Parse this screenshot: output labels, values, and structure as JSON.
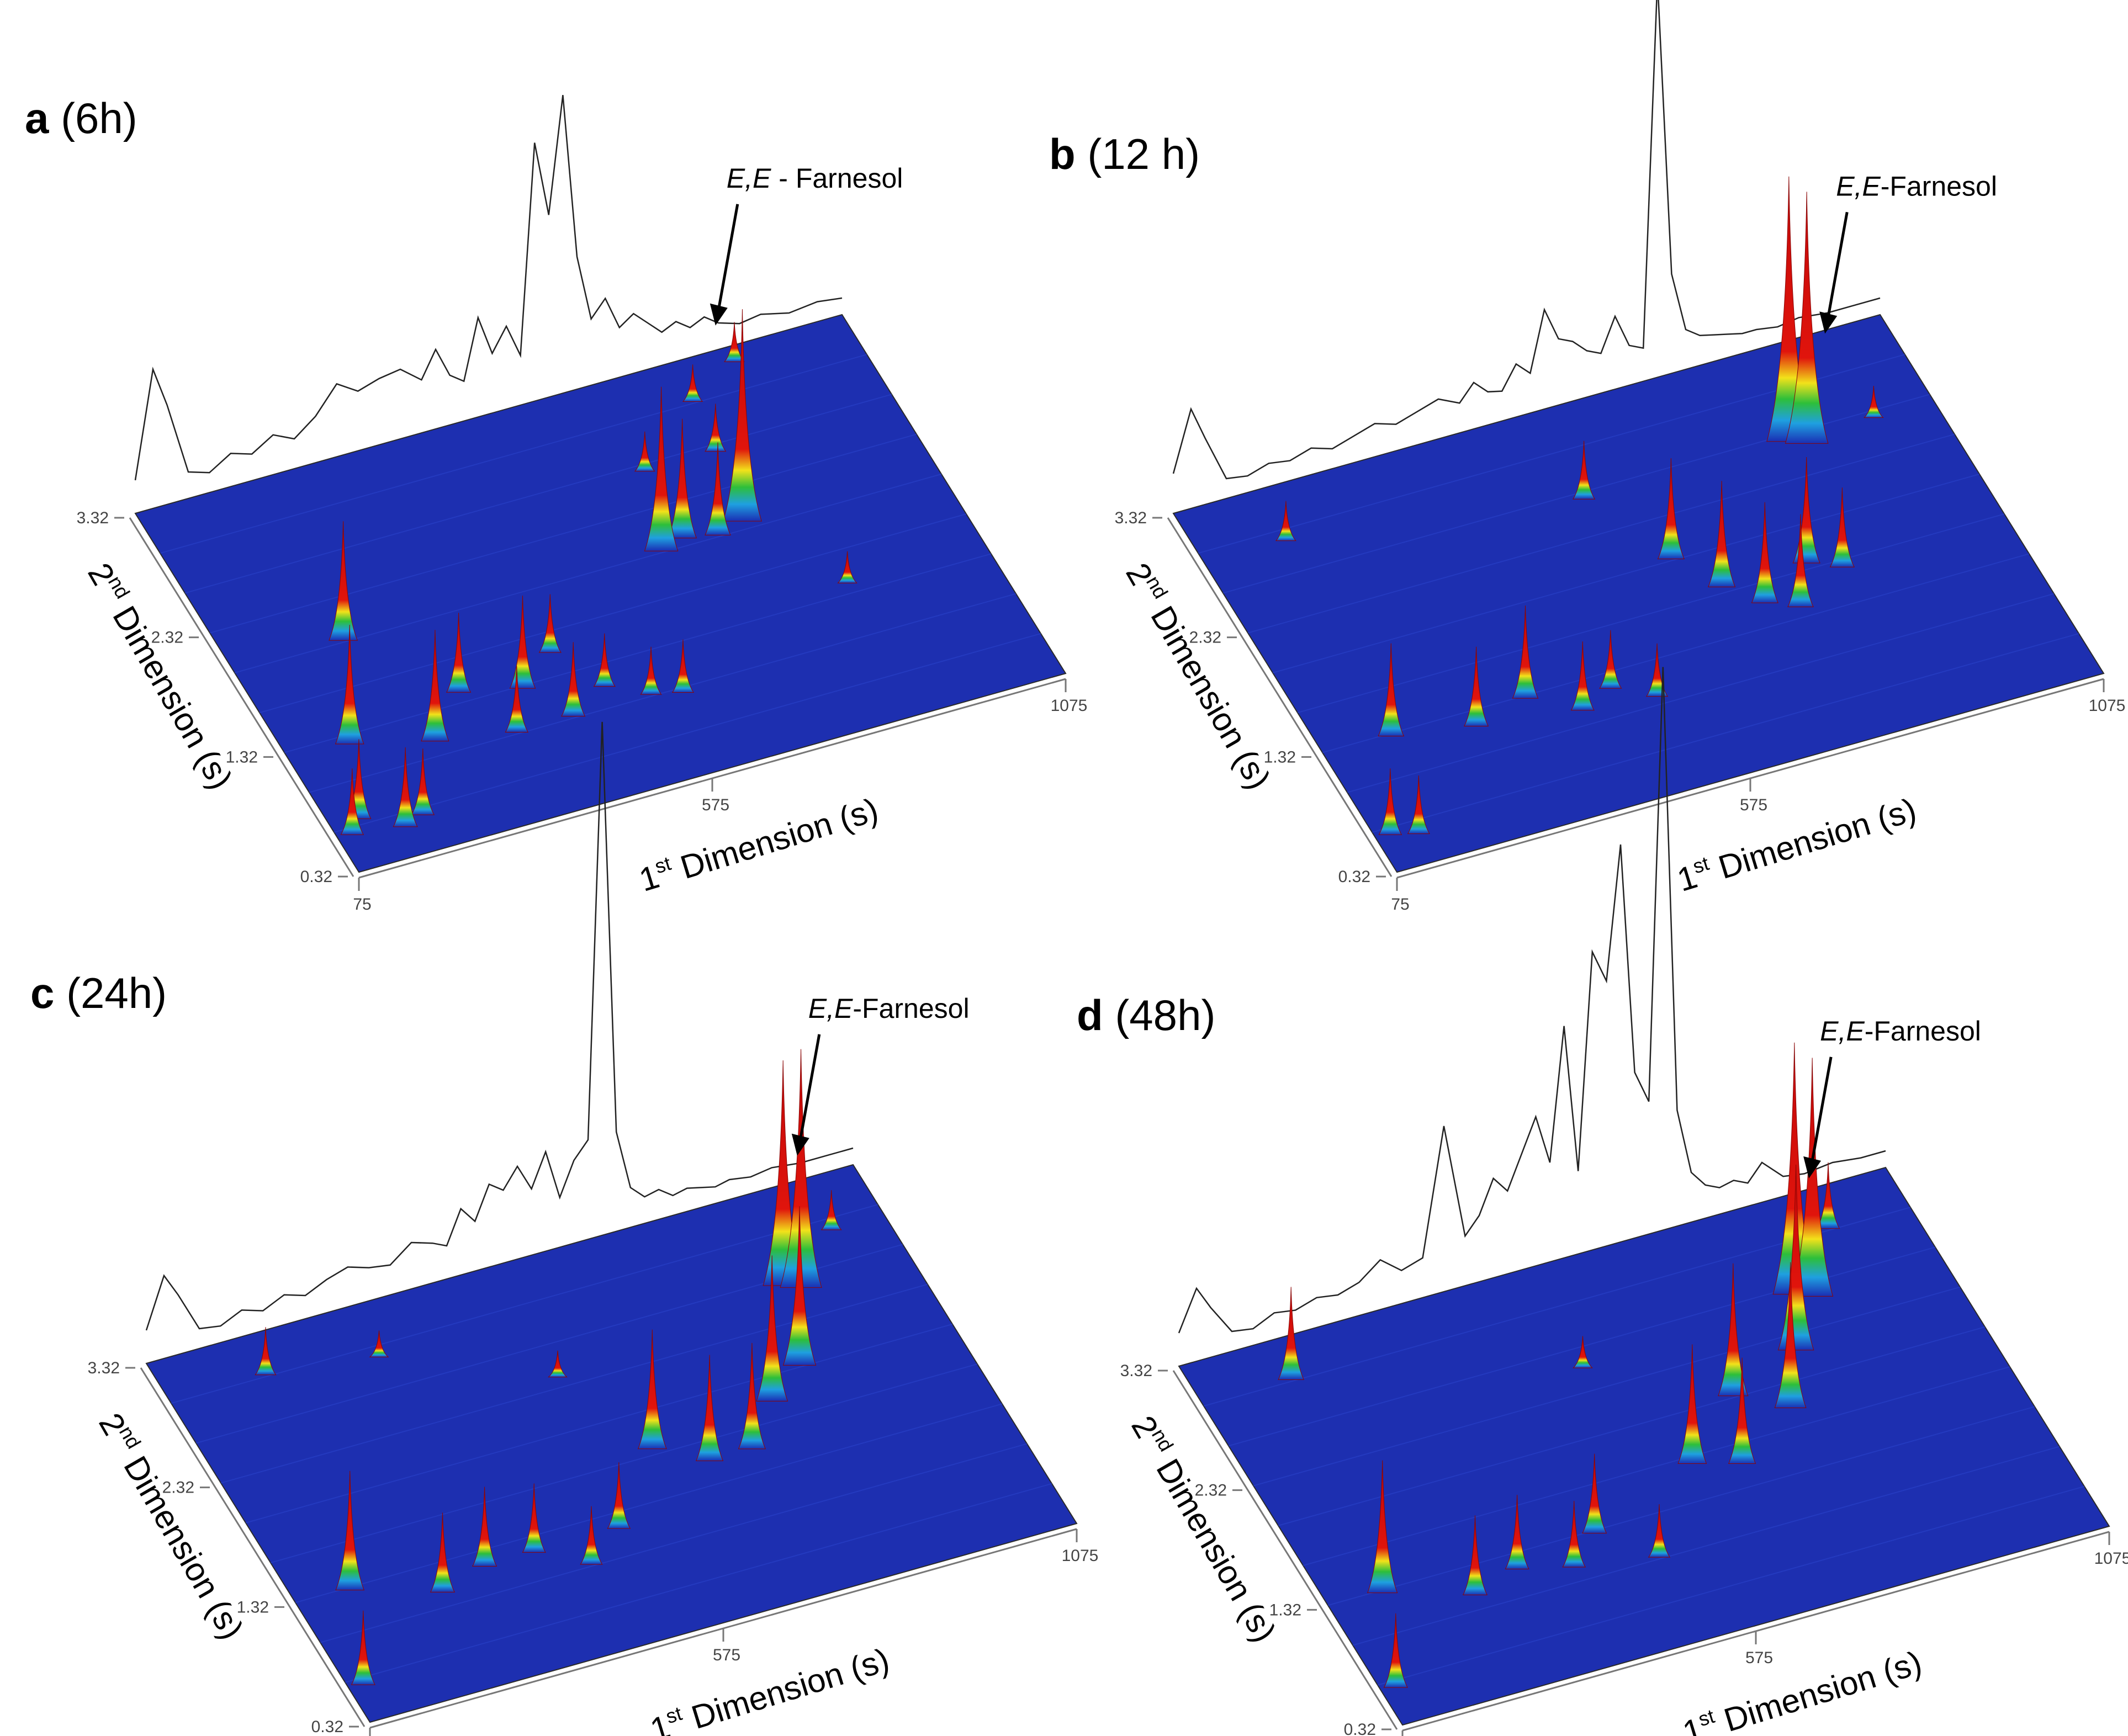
{
  "figure": {
    "panels": [
      {
        "letter": "a",
        "time": "(6h)"
      },
      {
        "letter": "b",
        "time": "(12 h)"
      },
      {
        "letter": "c",
        "time": "(24h)"
      },
      {
        "letter": "d",
        "time": "(48h)"
      }
    ]
  },
  "chart_data": [
    {
      "type": "surface",
      "panel": "a",
      "title": "a (6h)",
      "xlabel": "1st Dimension (s)",
      "ylabel": "2nd Dimension (s)",
      "x_ticks": [
        "75",
        "575",
        "1075"
      ],
      "y_ticks": [
        "0.32",
        "1.32",
        "2.32",
        "3.32"
      ],
      "xlim": [
        75,
        1075
      ],
      "ylim": [
        0.32,
        3.32
      ],
      "annotation": {
        "italic": "E,E",
        "text": " - Farnesol",
        "x": 820,
        "y": 2.6
      },
      "color_scale": [
        "#1a2eb4",
        "#1fa0e0",
        "#2dbf3a",
        "#f2e21a",
        "#e0140c"
      ],
      "peaks": [
        {
          "x": 95,
          "y": 0.6,
          "h": 0.25
        },
        {
          "x": 115,
          "y": 0.7,
          "h": 0.3
        },
        {
          "x": 160,
          "y": 1.25,
          "h": 0.45
        },
        {
          "x": 165,
          "y": 0.55,
          "h": 0.3
        },
        {
          "x": 195,
          "y": 0.6,
          "h": 0.25
        },
        {
          "x": 230,
          "y": 2.0,
          "h": 0.45
        },
        {
          "x": 265,
          "y": 1.1,
          "h": 0.42
        },
        {
          "x": 330,
          "y": 1.4,
          "h": 0.3
        },
        {
          "x": 370,
          "y": 1.0,
          "h": 0.25
        },
        {
          "x": 410,
          "y": 1.3,
          "h": 0.35
        },
        {
          "x": 450,
          "y": 1.0,
          "h": 0.28
        },
        {
          "x": 470,
          "y": 1.5,
          "h": 0.22
        },
        {
          "x": 510,
          "y": 1.15,
          "h": 0.2
        },
        {
          "x": 560,
          "y": 1.0,
          "h": 0.18
        },
        {
          "x": 600,
          "y": 0.95,
          "h": 0.2
        },
        {
          "x": 680,
          "y": 2.0,
          "h": 0.62
        },
        {
          "x": 715,
          "y": 2.05,
          "h": 0.45
        },
        {
          "x": 720,
          "y": 2.6,
          "h": 0.15
        },
        {
          "x": 760,
          "y": 2.0,
          "h": 0.35
        },
        {
          "x": 800,
          "y": 2.05,
          "h": 0.8
        },
        {
          "x": 820,
          "y": 2.6,
          "h": 0.18
        },
        {
          "x": 830,
          "y": 3.0,
          "h": 0.14
        },
        {
          "x": 880,
          "y": 1.4,
          "h": 0.12
        },
        {
          "x": 910,
          "y": 3.2,
          "h": 0.15
        }
      ],
      "tic_trace": {
        "x": [
          75,
          100,
          120,
          150,
          180,
          210,
          240,
          270,
          300,
          330,
          360,
          390,
          420,
          450,
          480,
          500,
          520,
          540,
          560,
          580,
          600,
          620,
          640,
          660,
          680,
          700,
          720,
          740,
          760,
          780,
          800,
          820,
          840,
          860,
          880,
          900,
          930,
          960,
          1000,
          1040,
          1075
        ],
        "y": [
          0.1,
          0.42,
          0.3,
          0.08,
          0.06,
          0.1,
          0.08,
          0.12,
          0.09,
          0.14,
          0.22,
          0.18,
          0.2,
          0.21,
          0.16,
          0.24,
          0.15,
          0.12,
          0.3,
          0.18,
          0.25,
          0.15,
          0.78,
          0.55,
          0.9,
          0.4,
          0.2,
          0.25,
          0.15,
          0.18,
          0.14,
          0.1,
          0.12,
          0.09,
          0.11,
          0.08,
          0.06,
          0.07,
          0.05,
          0.06,
          0.05
        ]
      }
    },
    {
      "type": "surface",
      "panel": "b",
      "title": "b (12 h)",
      "xlabel": "1st Dimension (s)",
      "ylabel": "2nd Dimension (s)",
      "x_ticks": [
        "75",
        "575",
        "1075"
      ],
      "y_ticks": [
        "0.32",
        "1.32",
        "2.32",
        "3.32"
      ],
      "xlim": [
        75,
        1075
      ],
      "ylim": [
        0.32,
        3.32
      ],
      "annotation": {
        "italic": "E,E",
        "text": "-Farnesol",
        "x": 900,
        "y": 2.4
      },
      "color_scale": [
        "#1a2eb4",
        "#1fa0e0",
        "#2dbf3a",
        "#f2e21a",
        "#e0140c"
      ],
      "peaks": [
        {
          "x": 95,
          "y": 0.6,
          "h": 0.25
        },
        {
          "x": 130,
          "y": 0.55,
          "h": 0.22
        },
        {
          "x": 170,
          "y": 1.3,
          "h": 0.35
        },
        {
          "x": 190,
          "y": 2.9,
          "h": 0.15
        },
        {
          "x": 280,
          "y": 1.2,
          "h": 0.3
        },
        {
          "x": 360,
          "y": 1.3,
          "h": 0.35
        },
        {
          "x": 420,
          "y": 1.1,
          "h": 0.26
        },
        {
          "x": 470,
          "y": 1.2,
          "h": 0.22
        },
        {
          "x": 520,
          "y": 1.05,
          "h": 0.2
        },
        {
          "x": 580,
          "y": 2.6,
          "h": 0.22
        },
        {
          "x": 640,
          "y": 2.0,
          "h": 0.38
        },
        {
          "x": 680,
          "y": 1.7,
          "h": 0.4
        },
        {
          "x": 720,
          "y": 1.5,
          "h": 0.38
        },
        {
          "x": 760,
          "y": 1.4,
          "h": 0.35
        },
        {
          "x": 800,
          "y": 1.7,
          "h": 0.4
        },
        {
          "x": 840,
          "y": 1.6,
          "h": 0.3
        },
        {
          "x": 870,
          "y": 2.6,
          "h": 1.0
        },
        {
          "x": 890,
          "y": 2.55,
          "h": 0.95
        },
        {
          "x": 990,
          "y": 2.6,
          "h": 0.12
        }
      ],
      "tic_trace": {
        "x": [
          75,
          100,
          120,
          150,
          180,
          210,
          240,
          270,
          300,
          330,
          360,
          390,
          420,
          450,
          480,
          500,
          520,
          540,
          560,
          580,
          600,
          620,
          640,
          660,
          680,
          700,
          720,
          740,
          760,
          780,
          800,
          820,
          840,
          860,
          880,
          900,
          930,
          960,
          1000,
          1040,
          1075
        ],
        "y": [
          0.12,
          0.3,
          0.2,
          0.06,
          0.05,
          0.07,
          0.06,
          0.08,
          0.06,
          0.08,
          0.1,
          0.08,
          0.1,
          0.12,
          0.09,
          0.14,
          0.1,
          0.09,
          0.16,
          0.12,
          0.3,
          0.2,
          0.18,
          0.14,
          0.12,
          0.22,
          0.12,
          0.1,
          1.2,
          0.3,
          0.12,
          0.09,
          0.08,
          0.07,
          0.06,
          0.06,
          0.05,
          0.06,
          0.05,
          0.05,
          0.05
        ]
      }
    },
    {
      "type": "surface",
      "panel": "c",
      "title": "c (24h)",
      "xlabel": "1st Dimension (s)",
      "ylabel": "2nd Dimension (s)",
      "x_ticks": [
        "75",
        "575",
        "1075"
      ],
      "y_ticks": [
        "0.32",
        "1.32",
        "2.32",
        "3.32"
      ],
      "xlim": [
        75,
        1075
      ],
      "ylim": [
        0.32,
        3.32
      ],
      "annotation": {
        "italic": "E,E",
        "text": "-Farnesol",
        "x": 920,
        "y": 2.6
      },
      "color_scale": [
        "#1a2eb4",
        "#1fa0e0",
        "#2dbf3a",
        "#f2e21a",
        "#e0140c"
      ],
      "peaks": [
        {
          "x": 95,
          "y": 0.6,
          "h": 0.28
        },
        {
          "x": 150,
          "y": 1.3,
          "h": 0.45
        },
        {
          "x": 210,
          "y": 3.0,
          "h": 0.18
        },
        {
          "x": 260,
          "y": 1.1,
          "h": 0.3
        },
        {
          "x": 330,
          "y": 1.2,
          "h": 0.3
        },
        {
          "x": 360,
          "y": 2.9,
          "h": 0.1
        },
        {
          "x": 400,
          "y": 1.2,
          "h": 0.26
        },
        {
          "x": 460,
          "y": 1.0,
          "h": 0.22
        },
        {
          "x": 520,
          "y": 1.2,
          "h": 0.25
        },
        {
          "x": 560,
          "y": 2.4,
          "h": 0.1
        },
        {
          "x": 620,
          "y": 1.7,
          "h": 0.45
        },
        {
          "x": 680,
          "y": 1.5,
          "h": 0.4
        },
        {
          "x": 740,
          "y": 1.5,
          "h": 0.4
        },
        {
          "x": 800,
          "y": 1.8,
          "h": 0.55
        },
        {
          "x": 860,
          "y": 2.0,
          "h": 0.6
        },
        {
          "x": 900,
          "y": 2.6,
          "h": 0.85
        },
        {
          "x": 920,
          "y": 2.55,
          "h": 0.9
        },
        {
          "x": 1000,
          "y": 2.9,
          "h": 0.15
        }
      ],
      "tic_trace": {
        "x": [
          75,
          100,
          120,
          150,
          180,
          210,
          240,
          270,
          300,
          330,
          360,
          390,
          420,
          450,
          480,
          500,
          520,
          540,
          560,
          580,
          600,
          620,
          640,
          660,
          680,
          700,
          720,
          740,
          760,
          780,
          800,
          820,
          840,
          860,
          880,
          900,
          930,
          960,
          1000,
          1040,
          1075
        ],
        "y": [
          0.1,
          0.25,
          0.18,
          0.06,
          0.05,
          0.08,
          0.06,
          0.09,
          0.07,
          0.1,
          0.12,
          0.1,
          0.09,
          0.14,
          0.12,
          0.1,
          0.2,
          0.15,
          0.25,
          0.22,
          0.28,
          0.2,
          0.3,
          0.15,
          0.25,
          0.3,
          1.55,
          0.3,
          0.12,
          0.08,
          0.09,
          0.06,
          0.07,
          0.06,
          0.05,
          0.06,
          0.05,
          0.06,
          0.05,
          0.05,
          0.05
        ]
      }
    },
    {
      "type": "surface",
      "panel": "d",
      "title": "d (48h)",
      "xlabel": "1st Dimension (s)",
      "ylabel": "2nd Dimension (s)",
      "x_ticks": [
        "75",
        "575",
        "1075"
      ],
      "y_ticks": [
        "0.32",
        "1.32",
        "2.32",
        "3.32"
      ],
      "xlim": [
        75,
        1075
      ],
      "ylim": [
        0.32,
        3.32
      ],
      "annotation": {
        "italic": "E,E",
        "text": "-Farnesol",
        "x": 880,
        "y": 2.5
      },
      "color_scale": [
        "#1a2eb4",
        "#1fa0e0",
        "#2dbf3a",
        "#f2e21a",
        "#e0140c"
      ],
      "peaks": [
        {
          "x": 95,
          "y": 0.6,
          "h": 0.28
        },
        {
          "x": 150,
          "y": 1.3,
          "h": 0.5
        },
        {
          "x": 200,
          "y": 3.0,
          "h": 0.35
        },
        {
          "x": 260,
          "y": 1.1,
          "h": 0.3
        },
        {
          "x": 330,
          "y": 1.2,
          "h": 0.28
        },
        {
          "x": 400,
          "y": 1.1,
          "h": 0.25
        },
        {
          "x": 450,
          "y": 1.3,
          "h": 0.3
        },
        {
          "x": 510,
          "y": 1.0,
          "h": 0.2
        },
        {
          "x": 560,
          "y": 2.5,
          "h": 0.12
        },
        {
          "x": 620,
          "y": 1.6,
          "h": 0.45
        },
        {
          "x": 680,
          "y": 1.5,
          "h": 0.4
        },
        {
          "x": 720,
          "y": 2.0,
          "h": 0.5
        },
        {
          "x": 780,
          "y": 1.8,
          "h": 0.55
        },
        {
          "x": 830,
          "y": 2.2,
          "h": 0.7
        },
        {
          "x": 870,
          "y": 2.6,
          "h": 0.95
        },
        {
          "x": 890,
          "y": 2.55,
          "h": 0.9
        },
        {
          "x": 960,
          "y": 3.0,
          "h": 0.25
        }
      ],
      "tic_trace": {
        "x": [
          75,
          100,
          120,
          150,
          180,
          210,
          240,
          270,
          300,
          330,
          360,
          390,
          420,
          450,
          480,
          500,
          520,
          540,
          560,
          580,
          600,
          620,
          640,
          660,
          680,
          700,
          720,
          740,
          760,
          780,
          800,
          820,
          840,
          860,
          880,
          900,
          930,
          960,
          1000,
          1040,
          1075
        ],
        "y": [
          0.1,
          0.22,
          0.15,
          0.06,
          0.05,
          0.08,
          0.07,
          0.09,
          0.08,
          0.1,
          0.15,
          0.1,
          0.12,
          0.5,
          0.15,
          0.2,
          0.3,
          0.25,
          0.35,
          0.45,
          0.3,
          0.7,
          0.25,
          0.9,
          0.8,
          1.2,
          0.5,
          0.4,
          1.7,
          0.35,
          0.15,
          0.1,
          0.08,
          0.09,
          0.07,
          0.12,
          0.06,
          0.05,
          0.06,
          0.05,
          0.05
        ]
      }
    }
  ]
}
